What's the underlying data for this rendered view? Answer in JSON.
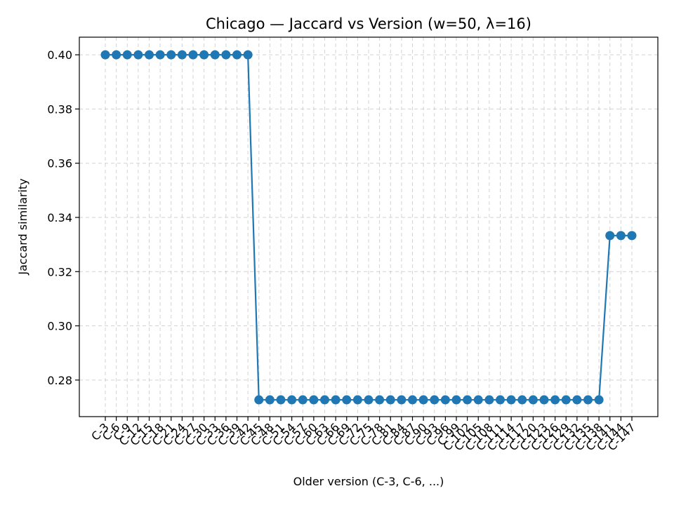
{
  "chart_data": {
    "type": "line",
    "title": "Chicago — Jaccard vs Version (w=50, λ=16)",
    "xlabel": "Older version (C-3, C-6, ...)",
    "ylabel": "Jaccard similarity",
    "ylim": [
      0.2665,
      0.4065
    ],
    "yticks": [
      0.28,
      0.3,
      0.32,
      0.34,
      0.36,
      0.38,
      0.4
    ],
    "grid": true,
    "color": "#1f77b4",
    "categories": [
      "C-3",
      "C-6",
      "C-9",
      "C-12",
      "C-15",
      "C-18",
      "C-21",
      "C-24",
      "C-27",
      "C-30",
      "C-33",
      "C-36",
      "C-39",
      "C-42",
      "C-45",
      "C-48",
      "C-51",
      "C-54",
      "C-57",
      "C-60",
      "C-63",
      "C-66",
      "C-69",
      "C-72",
      "C-75",
      "C-78",
      "C-81",
      "C-84",
      "C-87",
      "C-90",
      "C-93",
      "C-96",
      "C-99",
      "C-102",
      "C-105",
      "C-108",
      "C-111",
      "C-114",
      "C-117",
      "C-120",
      "C-123",
      "C-126",
      "C-129",
      "C-132",
      "C-135",
      "C-138",
      "C-141",
      "C-144",
      "C-147"
    ],
    "series": [
      {
        "values": [
          0.4,
          0.4,
          0.4,
          0.4,
          0.4,
          0.4,
          0.4,
          0.4,
          0.4,
          0.4,
          0.4,
          0.4,
          0.4,
          0.4,
          0.2727,
          0.2727,
          0.2727,
          0.2727,
          0.2727,
          0.2727,
          0.2727,
          0.2727,
          0.2727,
          0.2727,
          0.2727,
          0.2727,
          0.2727,
          0.2727,
          0.2727,
          0.2727,
          0.2727,
          0.2727,
          0.2727,
          0.2727,
          0.2727,
          0.2727,
          0.2727,
          0.2727,
          0.2727,
          0.2727,
          0.2727,
          0.2727,
          0.2727,
          0.2727,
          0.2727,
          0.2727,
          0.3333,
          0.3333,
          0.3333
        ]
      }
    ]
  }
}
